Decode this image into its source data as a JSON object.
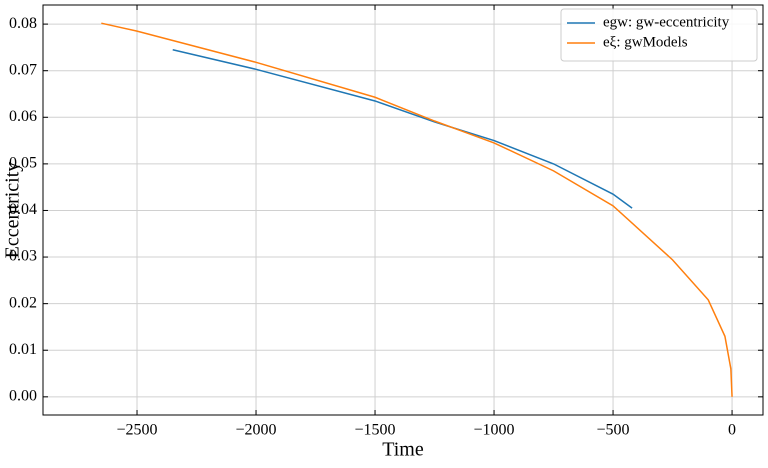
{
  "chart_data": {
    "type": "line",
    "xlabel": "Time",
    "ylabel": "Eccentricity",
    "series": [
      {
        "name": "egw: gw-eccentricity",
        "color": "#1f77b4",
        "x": [
          -2350,
          -2000,
          -1500,
          -1250,
          -1000,
          -750,
          -500,
          -420
        ],
        "values": [
          0.0745,
          0.0703,
          0.0635,
          0.059,
          0.055,
          0.05,
          0.0435,
          0.0405
        ]
      },
      {
        "name": "eξ: gwModels",
        "color": "#ff7f0e",
        "x": [
          -2650,
          -2500,
          -2000,
          -1500,
          -1250,
          -1000,
          -750,
          -500,
          -250,
          -100,
          -30,
          -5,
          0
        ],
        "values": [
          0.0802,
          0.0785,
          0.0718,
          0.0643,
          0.0592,
          0.0545,
          0.0485,
          0.041,
          0.0294,
          0.0208,
          0.013,
          0.006,
          0
        ]
      }
    ],
    "xlim": [
      -2895,
      130
    ],
    "ylim": [
      -0.0039,
      0.0841
    ],
    "xticks": [
      {
        "value": -2500,
        "label": "−2500"
      },
      {
        "value": -2000,
        "label": "−2000"
      },
      {
        "value": -1500,
        "label": "−1500"
      },
      {
        "value": -1000,
        "label": "−1000"
      },
      {
        "value": -500,
        "label": "−500"
      },
      0
    ],
    "yticks": [
      {
        "value": 0,
        "label": "0.00"
      },
      0.01,
      0.02,
      0.03,
      0.04,
      0.05,
      0.06,
      0.07,
      0.08
    ],
    "grid": true,
    "legend": "upper right"
  }
}
